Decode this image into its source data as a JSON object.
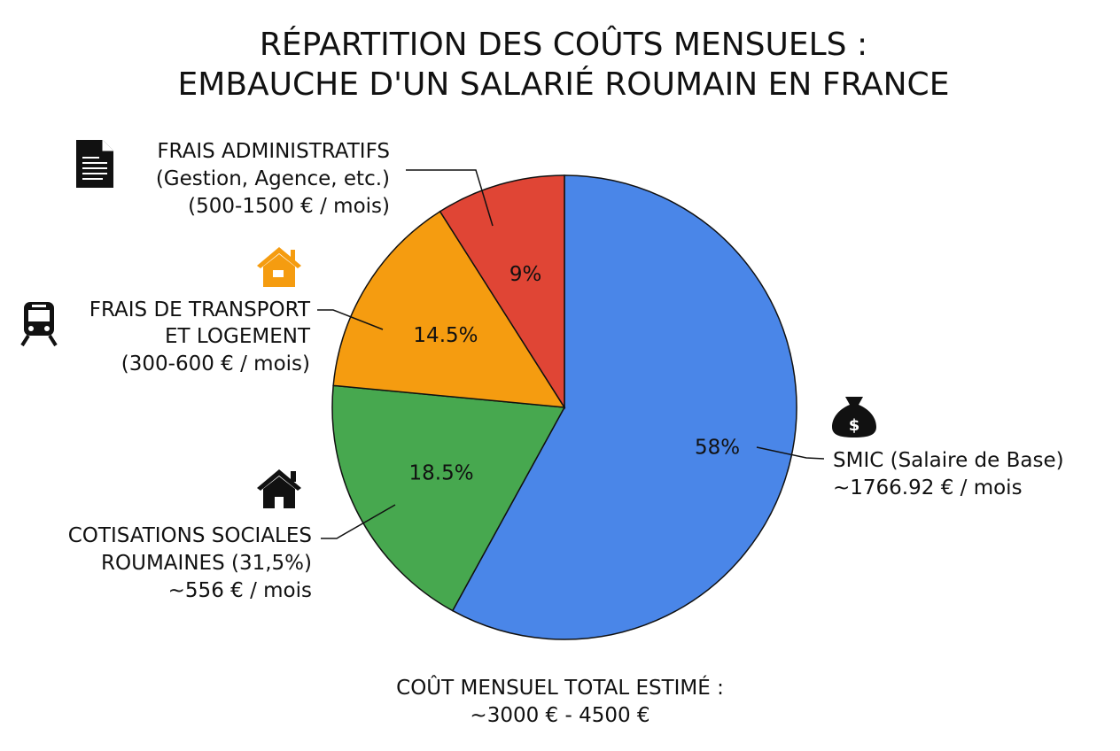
{
  "chart_data": {
    "type": "pie",
    "title": [
      "RÉPARTITION DES COÛTS MENSUELS :",
      "EMBAUCHE D'UN SALARIÉ ROUMAIN EN FRANCE"
    ],
    "start_angle": "top",
    "direction": "clockwise",
    "slices": [
      {
        "key": "smic",
        "value": 58,
        "label": "58%",
        "color": "#4a86e8",
        "legend": [
          "SMIC (Salaire de Base)",
          "~1766.92 € / mois"
        ],
        "icon": "money-bag-icon"
      },
      {
        "key": "cotisations",
        "value": 18.5,
        "label": "18.5%",
        "color": "#47a84f",
        "legend": [
          "COTISATIONS SOCIALES",
          "ROUMAINES (31,5%)",
          "~556 € / mois"
        ],
        "icon": "house-icon"
      },
      {
        "key": "transport",
        "value": 14.5,
        "label": "14.5%",
        "color": "#f59c10",
        "legend": [
          "FRAIS DE TRANSPORT",
          "ET LOGEMENT",
          "(300-600 € / mois)"
        ],
        "icon": "train-icon"
      },
      {
        "key": "admin",
        "value": 9,
        "label": "9%",
        "color": "#e04535",
        "legend": [
          "FRAIS ADMINISTRATIFS",
          "(Gestion, Agence, etc.)",
          "(500-1500 € / mois)"
        ],
        "icon": "document-icon"
      }
    ],
    "extra_icon_color": "#f59c10",
    "footer": [
      "COÛT MENSUEL TOTAL ESTIMÉ :",
      "~3000 € - 4500 €"
    ]
  }
}
